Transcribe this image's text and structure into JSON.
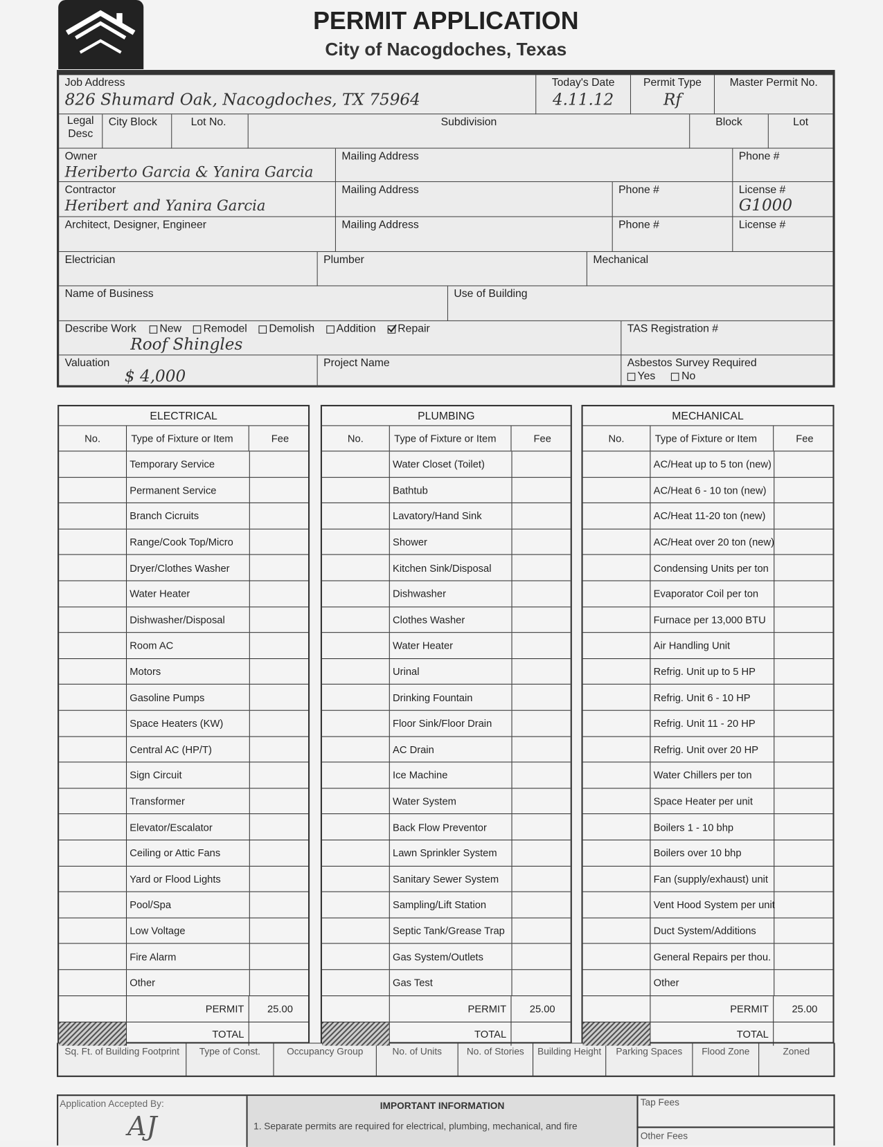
{
  "header": {
    "title": "PERMIT APPLICATION",
    "subtitle": "City of Nacogdoches, Texas",
    "logo_icon": "house-icon"
  },
  "top": {
    "job_address": {
      "label": "Job Address",
      "value": "826 Shumard Oak, Nacogdoches, TX 75964"
    },
    "todays_date": {
      "label": "Today's Date",
      "value": "4.11.12"
    },
    "permit_type": {
      "label": "Permit Type",
      "value": "Rf"
    },
    "master_permit": {
      "label": "Master Permit No."
    },
    "legal_desc": "Legal Desc",
    "city_block": "City Block",
    "lot_no": "Lot No.",
    "subdivision": "Subdivision",
    "block": "Block",
    "lot": "Lot",
    "owner": {
      "label": "Owner",
      "value": "Heriberto Garcia & Yanira Garcia"
    },
    "owner_mailing": "Mailing Address",
    "owner_phone": "Phone #",
    "contractor": {
      "label": "Contractor",
      "value": "Heribert and Yanira Garcia"
    },
    "contractor_mailing": "Mailing Address",
    "contractor_phone": "Phone #",
    "contractor_license": {
      "label": "License #",
      "value": "G1000"
    },
    "architect": "Architect, Designer, Engineer",
    "architect_mailing": "Mailing Address",
    "architect_phone": "Phone #",
    "architect_license": "License #",
    "electrician": "Electrician",
    "plumber": "Plumber",
    "mechanical": "Mechanical",
    "business": "Name of Business",
    "use_of_building": "Use of Building",
    "describe_work": {
      "label": "Describe Work",
      "value": "Roof Shingles",
      "options": [
        {
          "label": "New",
          "checked": false
        },
        {
          "label": "Remodel",
          "checked": false
        },
        {
          "label": "Demolish",
          "checked": false
        },
        {
          "label": "Addition",
          "checked": false
        },
        {
          "label": "Repair",
          "checked": true
        }
      ]
    },
    "tas": "TAS Registration #",
    "valuation": {
      "label": "Valuation",
      "value": "$ 4,000"
    },
    "project_name": "Project Name",
    "asbestos": {
      "label": "Asbestos Survey Required",
      "yes": "Yes",
      "no": "No"
    }
  },
  "tables": [
    {
      "title": "ELECTRICAL",
      "headers": [
        "No.",
        "Type of Fixture or Item",
        "Fee"
      ],
      "items": [
        "Temporary Service",
        "Permanent Service",
        "Branch Cicruits",
        "Range/Cook Top/Micro",
        "Dryer/Clothes Washer",
        "Water Heater",
        "Dishwasher/Disposal",
        "Room AC",
        "Motors",
        "Gasoline Pumps",
        "Space Heaters (KW)",
        "Central AC (HP/T)",
        "Sign Circuit",
        "Transformer",
        "Elevator/Escalator",
        "Ceiling or Attic Fans",
        "Yard or Flood Lights",
        "Pool/Spa",
        "Low Voltage",
        "Fire Alarm",
        "Other"
      ],
      "permit_label": "PERMIT",
      "permit_fee": "25.00",
      "total_label": "TOTAL"
    },
    {
      "title": "PLUMBING",
      "headers": [
        "No.",
        "Type of Fixture or Item",
        "Fee"
      ],
      "items": [
        "Water Closet (Toilet)",
        "Bathtub",
        "Lavatory/Hand Sink",
        "Shower",
        "Kitchen Sink/Disposal",
        "Dishwasher",
        "Clothes Washer",
        "Water Heater",
        "Urinal",
        "Drinking Fountain",
        "Floor Sink/Floor Drain",
        "AC Drain",
        "Ice Machine",
        "Water System",
        "Back Flow Preventor",
        "Lawn Sprinkler System",
        "Sanitary Sewer System",
        "Sampling/Lift Station",
        "Septic Tank/Grease Trap",
        "Gas System/Outlets",
        "Gas Test"
      ],
      "permit_label": "PERMIT",
      "permit_fee": "25.00",
      "total_label": "TOTAL"
    },
    {
      "title": "MECHANICAL",
      "headers": [
        "No.",
        "Type of Fixture or Item",
        "Fee"
      ],
      "items": [
        "AC/Heat up to 5 ton (new)",
        "AC/Heat 6 - 10 ton (new)",
        "AC/Heat 11-20 ton (new)",
        "AC/Heat over 20 ton (new)",
        "Condensing Units per ton",
        "Evaporator Coil per ton",
        "Furnace per 13,000 BTU",
        "Air Handling Unit",
        "Refrig. Unit up to 5 HP",
        "Refrig. Unit 6 - 10 HP",
        "Refrig. Unit 11 - 20 HP",
        "Refrig. Unit over 20 HP",
        "Water Chillers per ton",
        "Space Heater per unit",
        "Boilers 1 - 10 bhp",
        "Boilers over 10 bhp",
        "Fan (supply/exhaust) unit",
        "Vent Hood System per unit",
        "Duct System/Additions",
        "General Repairs per thou.",
        "Other"
      ],
      "permit_label": "PERMIT",
      "permit_fee": "25.00",
      "total_label": "TOTAL"
    }
  ],
  "building_strip": [
    "Sq. Ft. of Building Footprint",
    "Type of Const.",
    "Occupancy Group",
    "No. of Units",
    "No. of Stories",
    "Building Height",
    "Parking Spaces",
    "Flood Zone",
    "Zoned"
  ],
  "footer": {
    "accepted_by": "Application Accepted By:",
    "signature": "AJ",
    "important_title": "IMPORTANT INFORMATION",
    "important_1": "1.  Separate permits are required for electrical, plumbing, mechanical, and fire",
    "tap_fees": "Tap Fees",
    "other_fees": "Other Fees"
  }
}
